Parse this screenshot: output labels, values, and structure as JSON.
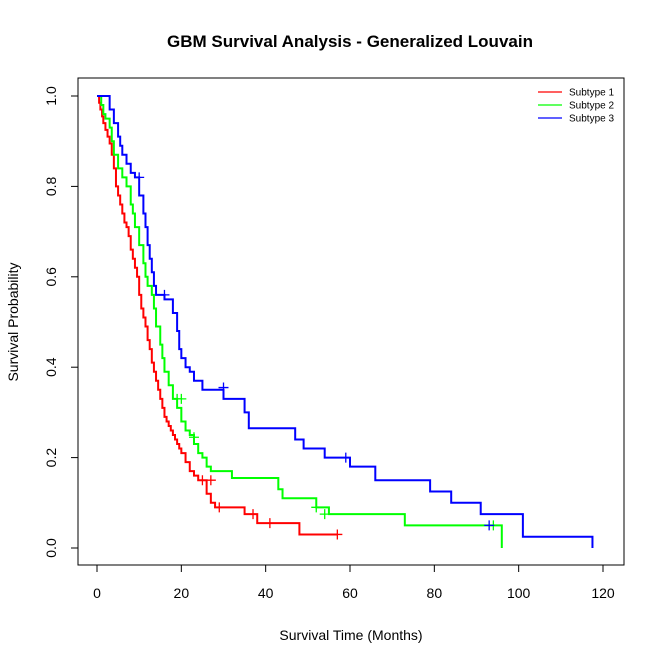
{
  "chart_data": {
    "type": "line",
    "subtype": "kaplan-meier step",
    "title": "GBM Survival Analysis - Generalized Louvain",
    "xlabel": "Survival Time (Months)",
    "ylabel": "Survival Probability",
    "xlim": [
      0,
      120
    ],
    "ylim": [
      0,
      1
    ],
    "x_ticks": [
      "0",
      "20",
      "40",
      "60",
      "80",
      "100",
      "120"
    ],
    "y_ticks": [
      "0.0",
      "0.2",
      "0.4",
      "0.6",
      "0.8",
      "1.0"
    ],
    "grid": false,
    "legend_position": "top-right",
    "series": [
      {
        "name": "Subtype 1",
        "color": "#ff0000",
        "x": [
          0,
          0.5,
          0.8,
          1.2,
          1.5,
          2,
          2.5,
          3,
          3.5,
          4,
          4.5,
          5,
          5.5,
          6,
          6.5,
          7,
          7.5,
          8,
          8.5,
          9,
          9.5,
          10,
          10.5,
          11,
          11.5,
          12,
          12.5,
          13,
          13.5,
          14,
          14.5,
          15,
          15.5,
          16,
          16.5,
          17,
          17.5,
          18,
          18.5,
          19,
          19.5,
          20,
          21,
          22,
          23,
          24,
          26,
          27,
          28,
          31,
          35,
          38,
          48,
          57
        ],
        "y": [
          1.0,
          0.985,
          0.97,
          0.955,
          0.94,
          0.925,
          0.91,
          0.895,
          0.87,
          0.84,
          0.8,
          0.78,
          0.76,
          0.74,
          0.72,
          0.71,
          0.69,
          0.66,
          0.64,
          0.62,
          0.6,
          0.56,
          0.53,
          0.51,
          0.49,
          0.46,
          0.44,
          0.41,
          0.39,
          0.37,
          0.35,
          0.33,
          0.31,
          0.29,
          0.28,
          0.27,
          0.26,
          0.25,
          0.24,
          0.23,
          0.22,
          0.21,
          0.19,
          0.17,
          0.16,
          0.15,
          0.12,
          0.1,
          0.09,
          0.09,
          0.075,
          0.055,
          0.03,
          0.03
        ],
        "censored": [
          [
            25,
            0.15
          ],
          [
            27,
            0.15
          ],
          [
            29,
            0.09
          ],
          [
            37,
            0.075
          ],
          [
            41,
            0.055
          ],
          [
            57,
            0.03
          ]
        ]
      },
      {
        "name": "Subtype 2",
        "color": "#00ff00",
        "x": [
          0,
          1,
          1.5,
          2,
          3,
          3.5,
          4,
          5,
          6,
          7,
          8,
          8.5,
          9,
          10,
          11,
          11.5,
          12,
          13,
          13.5,
          14,
          15,
          15.5,
          16,
          17,
          18,
          19,
          20,
          21,
          22,
          23,
          24,
          25,
          26,
          27,
          28,
          32,
          43,
          44,
          52,
          55,
          73,
          94,
          96
        ],
        "y": [
          1.0,
          0.98,
          0.96,
          0.95,
          0.93,
          0.9,
          0.87,
          0.84,
          0.82,
          0.8,
          0.76,
          0.74,
          0.71,
          0.67,
          0.63,
          0.6,
          0.58,
          0.56,
          0.53,
          0.49,
          0.45,
          0.42,
          0.39,
          0.36,
          0.33,
          0.31,
          0.28,
          0.26,
          0.25,
          0.23,
          0.21,
          0.2,
          0.18,
          0.17,
          0.17,
          0.155,
          0.13,
          0.11,
          0.09,
          0.075,
          0.05,
          0.05,
          0.0
        ],
        "censored": [
          [
            19,
            0.33
          ],
          [
            20,
            0.33
          ],
          [
            23,
            0.245
          ],
          [
            52,
            0.09
          ],
          [
            54,
            0.075
          ],
          [
            94,
            0.05
          ]
        ]
      },
      {
        "name": "Subtype 3",
        "color": "#0000ff",
        "x": [
          0,
          3,
          4,
          5,
          5.5,
          6,
          7,
          8,
          9,
          10,
          11,
          11.5,
          12,
          12.5,
          13,
          13.5,
          14,
          15,
          16,
          17,
          18,
          19,
          19.5,
          20,
          21,
          22,
          23,
          25,
          30,
          35,
          36,
          47,
          49,
          54,
          60,
          66,
          79,
          84,
          91,
          101,
          117.5
        ],
        "y": [
          1.0,
          0.97,
          0.94,
          0.91,
          0.89,
          0.87,
          0.85,
          0.83,
          0.82,
          0.78,
          0.74,
          0.71,
          0.67,
          0.64,
          0.61,
          0.58,
          0.56,
          0.56,
          0.55,
          0.55,
          0.52,
          0.48,
          0.44,
          0.42,
          0.4,
          0.39,
          0.37,
          0.35,
          0.33,
          0.3,
          0.265,
          0.24,
          0.22,
          0.2,
          0.18,
          0.15,
          0.125,
          0.1,
          0.075,
          0.025,
          0.0
        ],
        "censored": [
          [
            10,
            0.82
          ],
          [
            16,
            0.56
          ],
          [
            30,
            0.355
          ],
          [
            59,
            0.2
          ],
          [
            93,
            0.05
          ]
        ]
      }
    ]
  }
}
